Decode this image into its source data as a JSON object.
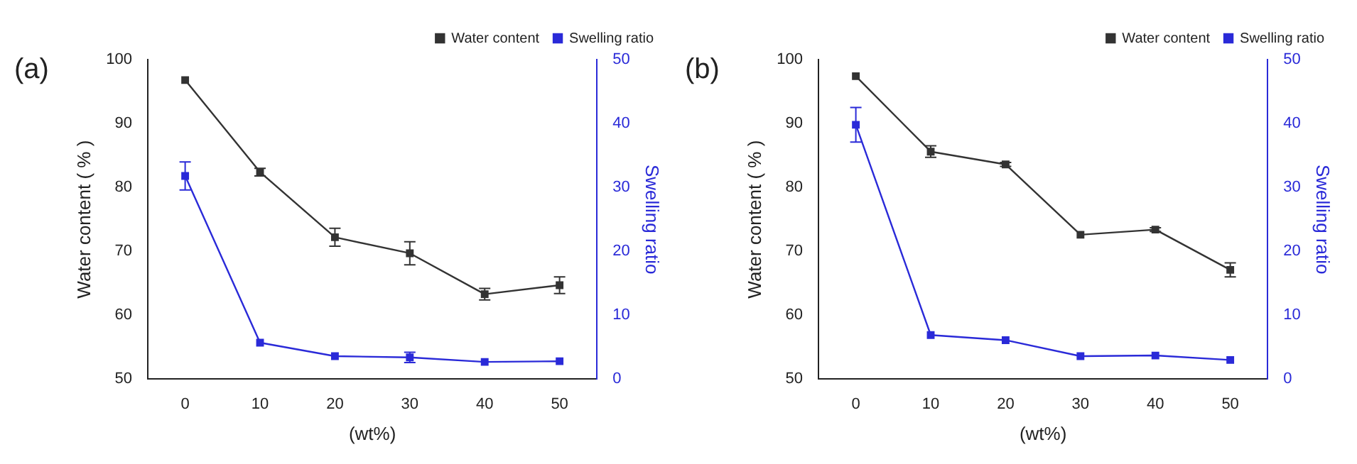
{
  "chart_data": [
    {
      "type": "line",
      "title": "(a)",
      "xlabel": "(wt%)",
      "ylabel": "Water content ( % )",
      "y2label": "Swelling ratio",
      "x": [
        0,
        10,
        20,
        30,
        40,
        50
      ],
      "xlim": [
        -5,
        55
      ],
      "xticks": [
        0,
        10,
        20,
        30,
        40,
        50
      ],
      "ylim": [
        50,
        100
      ],
      "yticks": [
        50,
        60,
        70,
        80,
        90,
        100
      ],
      "y2lim": [
        0,
        50
      ],
      "y2ticks": [
        0,
        10,
        20,
        30,
        40,
        50
      ],
      "legend": "top right",
      "marker": "square",
      "grid": false,
      "series": [
        {
          "name": "Water content",
          "color": "#333333",
          "values": [
            96.8,
            82.4,
            72.2,
            69.7,
            63.3,
            64.7
          ],
          "errors": [
            null,
            0.6,
            1.4,
            1.8,
            0.9,
            1.3
          ]
        },
        {
          "name": "Swelling ratio",
          "color": "#2a2ad8",
          "axis": "y2",
          "values": [
            31.8,
            5.7,
            3.6,
            3.4,
            2.7,
            2.8
          ],
          "errors": [
            2.2,
            null,
            null,
            0.8,
            null,
            null
          ]
        }
      ]
    },
    {
      "type": "line",
      "title": "(b)",
      "xlabel": "(wt%)",
      "ylabel": "Water content ( % )",
      "y2label": "Swelling ratio",
      "x": [
        0,
        10,
        20,
        30,
        40,
        50
      ],
      "xlim": [
        -5,
        55
      ],
      "xticks": [
        0,
        10,
        20,
        30,
        40,
        50
      ],
      "ylim": [
        50,
        100
      ],
      "yticks": [
        50,
        60,
        70,
        80,
        90,
        100
      ],
      "y2lim": [
        0,
        50
      ],
      "y2ticks": [
        0,
        10,
        20,
        30,
        40,
        50
      ],
      "legend": "top right",
      "marker": "square",
      "grid": false,
      "series": [
        {
          "name": "Water content",
          "color": "#333333",
          "values": [
            97.4,
            85.6,
            83.6,
            72.6,
            73.4,
            67.1
          ],
          "errors": [
            null,
            0.9,
            0.3,
            null,
            0.3,
            1.1
          ]
        },
        {
          "name": "Swelling ratio",
          "color": "#2a2ad8",
          "axis": "y2",
          "values": [
            39.8,
            6.9,
            6.1,
            3.6,
            3.7,
            3.0
          ],
          "errors": [
            2.7,
            null,
            null,
            null,
            null,
            null
          ]
        }
      ]
    }
  ]
}
